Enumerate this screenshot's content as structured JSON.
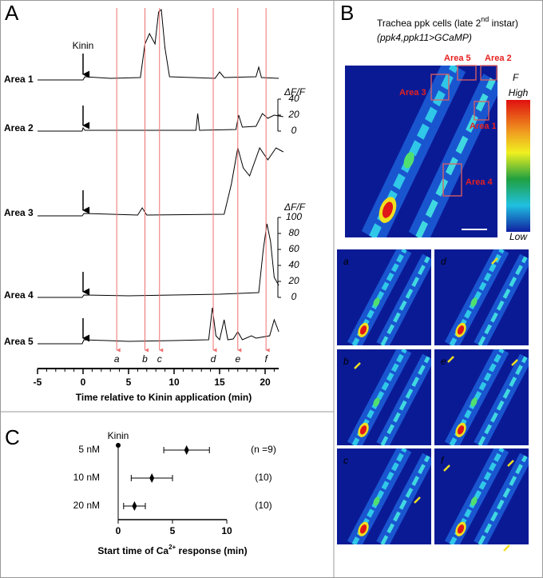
{
  "panels": [
    "A",
    "B",
    "C"
  ],
  "chart_data": [
    {
      "type": "line",
      "annotation": "Kinin",
      "color": "#000000",
      "series": [
        {
          "name": "Area 1",
          "x": [
            -5,
            -1,
            0,
            0.2,
            3,
            6.3,
            6.8,
            7.3,
            7.9,
            8.3,
            8.6,
            9.0,
            9.5,
            12,
            14.5,
            15,
            15.5,
            19,
            19.3,
            19.6,
            21.5
          ],
          "values": [
            0,
            0,
            0,
            4,
            2,
            3,
            45,
            58,
            45,
            85,
            88,
            40,
            4,
            3,
            2,
            10,
            3,
            4,
            16,
            3,
            2
          ]
        },
        {
          "name": "Area 2",
          "x": [
            -5,
            -0.1,
            0,
            0.2,
            12.4,
            12.6,
            12.8,
            16.8,
            17.1,
            17.5,
            19,
            19.7,
            20.3,
            21,
            22
          ],
          "values": [
            0,
            0,
            4,
            1,
            1,
            22,
            1,
            2,
            20,
            5,
            6,
            22,
            16,
            20,
            18
          ]
        },
        {
          "name": "Area 3",
          "x": [
            -5,
            -0.1,
            0.1,
            6,
            6.5,
            7,
            15.5,
            16.3,
            17,
            17.6,
            18.3,
            19.4,
            20.3,
            21.2,
            22
          ],
          "values": [
            0,
            0,
            3,
            1,
            10,
            1,
            2,
            40,
            85,
            60,
            50,
            85,
            70,
            85,
            80
          ]
        },
        {
          "name": "Area 4",
          "x": [
            -5,
            -0.1,
            0.1,
            5,
            10,
            15,
            19.3,
            19.8,
            20.2,
            20.6,
            21,
            21.5
          ],
          "values": [
            0,
            0,
            3,
            2,
            3,
            4,
            6,
            60,
            92,
            70,
            25,
            15
          ]
        },
        {
          "name": "Area 5",
          "x": [
            -5,
            -0.1,
            0.1,
            5,
            10,
            13.8,
            14.2,
            14.6,
            15,
            15.5,
            15.9,
            16.5,
            17,
            17.5,
            18.5,
            19,
            20.5,
            21,
            21.5
          ],
          "values": [
            0,
            0,
            5,
            3,
            4,
            5,
            45,
            10,
            5,
            30,
            5,
            6,
            15,
            5,
            10,
            7,
            10,
            30,
            15
          ]
        }
      ],
      "xlim": [
        -5,
        21.5
      ],
      "xticks": [
        -5,
        0,
        5,
        10,
        15,
        20
      ],
      "x_label": "Time relative to Kinin application (min)",
      "events": {
        "labels": [
          "a",
          "b",
          "c",
          "d",
          "e",
          "f"
        ],
        "x": [
          3.7,
          6.8,
          8.4,
          14.3,
          17,
          20.1
        ],
        "color": "#f07070"
      },
      "scale_bars": [
        {
          "label": "ΔF/F",
          "ylim": [
            0,
            40
          ],
          "yticks": [
            0,
            20,
            40
          ]
        },
        {
          "label": "ΔF/F",
          "ylim": [
            0,
            100
          ],
          "yticks": [
            0,
            20,
            40,
            60,
            80,
            100
          ]
        }
      ]
    },
    {
      "type": "errorbar",
      "annotation": "Kinin",
      "categories": [
        "5 nM",
        "10 nM",
        "20 nM"
      ],
      "values": [
        6.3,
        3.1,
        1.5
      ],
      "errors": [
        2.1,
        1.9,
        1.0
      ],
      "n_labels": [
        "(n =9)",
        "(10)",
        "(10)"
      ],
      "x_label": [
        "Start time of Ca",
        "2+",
        " response (min)"
      ],
      "xlim": [
        0,
        10
      ],
      "xticks": [
        0,
        5,
        10
      ]
    }
  ],
  "panel_b": {
    "title": [
      "Trachea ppk cells (late 2",
      "nd",
      " instar)"
    ],
    "subtitle": "(ppk4,ppk11>GCaMP)",
    "regions": [
      "Area 5",
      "Area 2",
      "Area 3",
      "Area 1",
      "Area 4"
    ],
    "colorbar": {
      "label": "F",
      "high": "High",
      "low": "Low"
    },
    "frames": [
      "a",
      "b",
      "c",
      "d",
      "e",
      "f"
    ]
  }
}
